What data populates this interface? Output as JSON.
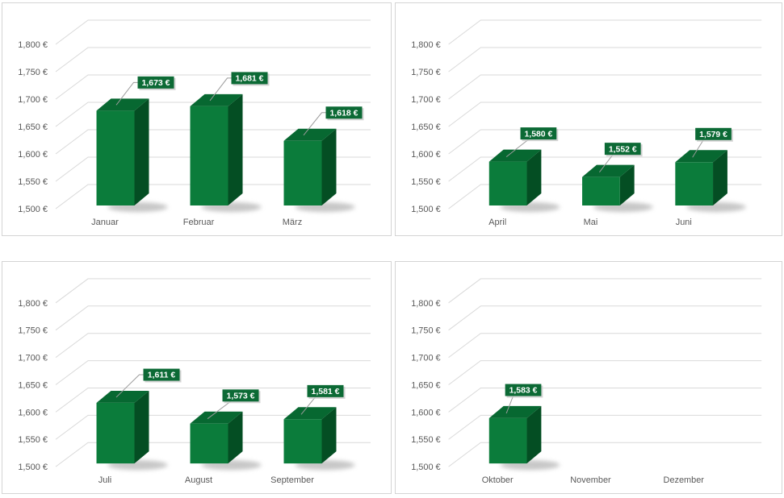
{
  "page": {
    "background": "#ffffff"
  },
  "colors": {
    "bar_front": "#0b7c3b",
    "bar_top": "#076831",
    "bar_side": "#044e23",
    "label_bg": "#0c6a35",
    "label_text": "#ffffff",
    "label_shadow": "#c9c9c9",
    "gridline": "#d9d9d9",
    "axis_text": "#595959",
    "leader_line": "#9b9b9b",
    "panel_border": "#d4d4d4",
    "bar_shadow": "#8f8f8f"
  },
  "chart_data": [
    {
      "type": "bar",
      "name": "quarter-1",
      "categories": [
        "Januar",
        "Februar",
        "März"
      ],
      "values": [
        1673,
        1681,
        1618
      ],
      "data_labels": [
        "1,673 €",
        "1,681 €",
        "1,618 €"
      ],
      "label_dx": [
        4,
        4,
        5
      ],
      "ylim": [
        1500,
        1800
      ],
      "ytick_step": 50,
      "yticks": [
        "1,800 €",
        "1,750 €",
        "1,700 €",
        "1,650 €",
        "1,600 €",
        "1,550 €",
        "1,500 €"
      ],
      "grid": true,
      "legend": "none",
      "title": ""
    },
    {
      "type": "bar",
      "name": "quarter-2",
      "categories": [
        "April",
        "Mai",
        "Juni"
      ],
      "values": [
        1580,
        1552,
        1579
      ],
      "data_labels": [
        "1,580 €",
        "1,552 €",
        "1,579 €"
      ],
      "label_dx": [
        -8,
        -19,
        -22
      ],
      "ylim": [
        1500,
        1800
      ],
      "ytick_step": 50,
      "yticks": [
        "1,800 €",
        "1,750 €",
        "1,700 €",
        "1,650 €",
        "1,600 €",
        "1,550 €",
        "1,500 €"
      ],
      "grid": true,
      "legend": "none",
      "title": ""
    },
    {
      "type": "bar",
      "name": "quarter-3",
      "categories": [
        "Juli",
        "August",
        "September"
      ],
      "values": [
        1611,
        1573,
        1581
      ],
      "data_labels": [
        "1,611 €",
        "1,573 €",
        "1,581 €"
      ],
      "label_dx": [
        11,
        -7,
        -18
      ],
      "ylim": [
        1500,
        1800
      ],
      "ytick_step": 50,
      "yticks": [
        "1,800 €",
        "1,750 €",
        "1,700 €",
        "1,650 €",
        "1,600 €",
        "1,550 €",
        "1,500 €"
      ],
      "grid": true,
      "legend": "none",
      "title": ""
    },
    {
      "type": "bar",
      "name": "quarter-4",
      "categories": [
        "Oktober",
        "November",
        "Dezember"
      ],
      "values": [
        1583,
        null,
        null
      ],
      "data_labels": [
        "1,583 €",
        null,
        null
      ],
      "label_dx": [
        -27,
        0,
        0
      ],
      "ylim": [
        1500,
        1800
      ],
      "ytick_step": 50,
      "yticks": [
        "1,800 €",
        "1,750 €",
        "1,700 €",
        "1,650 €",
        "1,600 €",
        "1,550 €",
        "1,500 €"
      ],
      "grid": true,
      "legend": "none",
      "title": ""
    }
  ]
}
